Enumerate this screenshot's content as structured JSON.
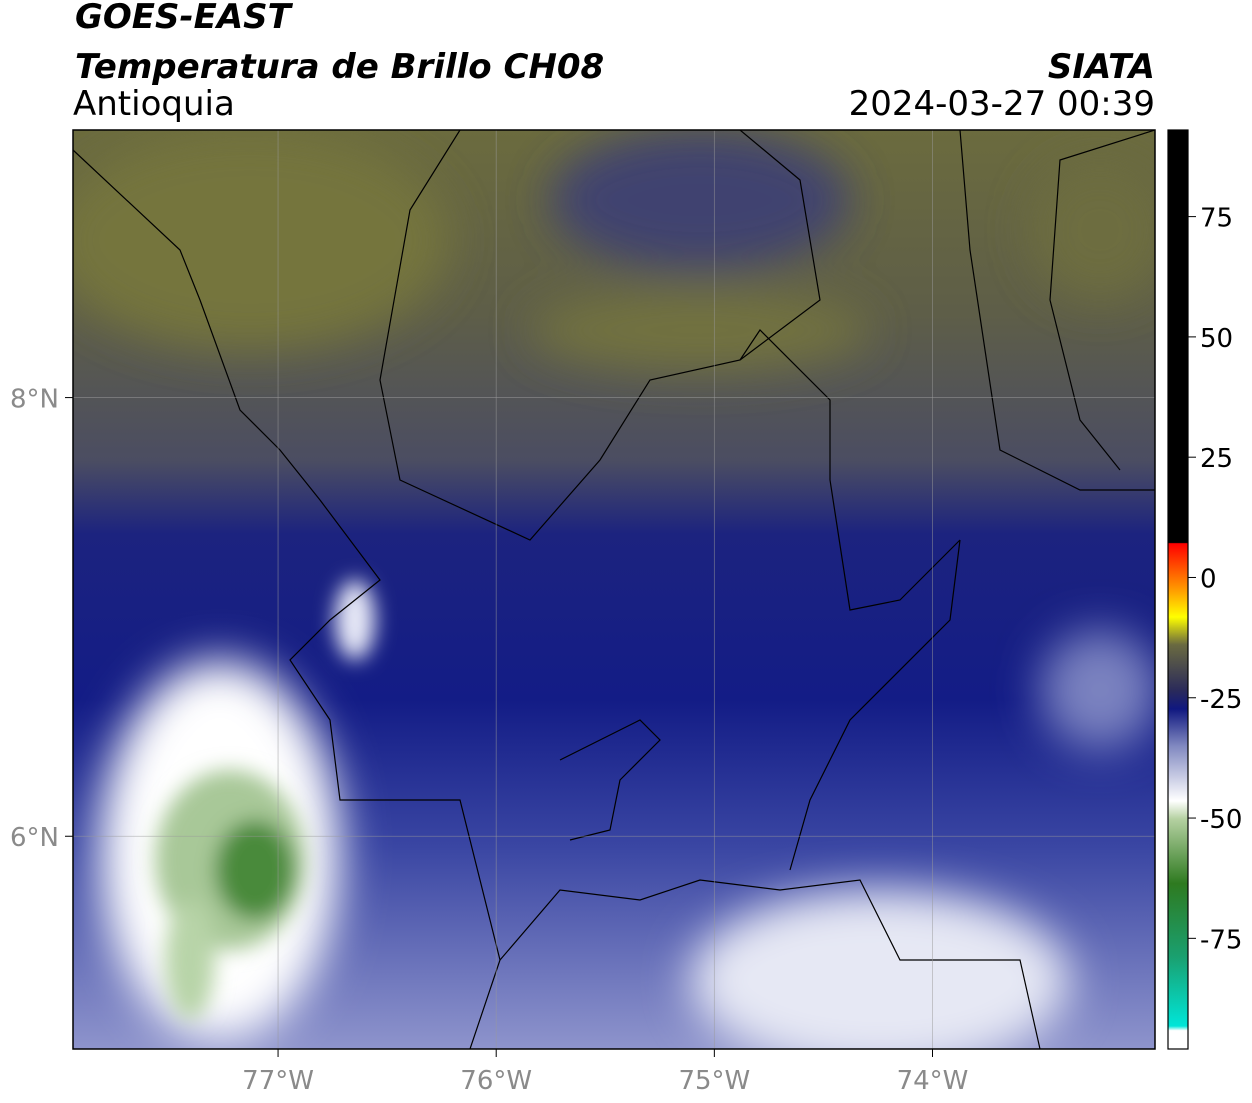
{
  "header": {
    "title": "GOES-EAST",
    "subtitle": "Temperatura de Brillo CH08",
    "region": "Antioquia",
    "source": "SIATA",
    "timestamp": "2024-03-27 00:39"
  },
  "map": {
    "lon_range": [
      -77.94,
      -72.98
    ],
    "lat_range": [
      5.03,
      9.22
    ],
    "lon_ticks": [
      {
        "value": -77,
        "label": "77°W"
      },
      {
        "value": -76,
        "label": "76°W"
      },
      {
        "value": -75,
        "label": "75°W"
      },
      {
        "value": -74,
        "label": "74°W"
      }
    ],
    "lat_ticks": [
      {
        "value": 8,
        "label": "8°N"
      },
      {
        "value": 6,
        "label": "6°N"
      }
    ]
  },
  "colorbar": {
    "range": [
      -98,
      93
    ],
    "ticks": [
      75,
      50,
      25,
      0,
      -25,
      -50,
      -75
    ]
  }
}
